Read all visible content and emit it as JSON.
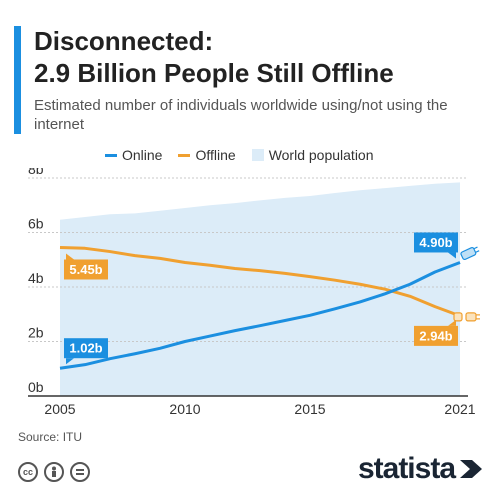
{
  "header": {
    "title_line1": "Disconnected:",
    "title_line2": "2.9 Billion People Still Offline",
    "subtitle": "Estimated number of individuals worldwide using/not using the internet"
  },
  "legend": {
    "online": "Online",
    "offline": "Offline",
    "population": "World population"
  },
  "footer": {
    "source": "Source: ITU",
    "brand": "statista"
  },
  "colors": {
    "online": "#1b8fe0",
    "offline": "#f0a030",
    "population": "#dcecf8",
    "accent": "#1b8fe0"
  },
  "icons": [
    "cc-icon",
    "person-icon",
    "equal-icon",
    "statista-logo-icon",
    "cable-plug-icon",
    "broken-cable-icon"
  ],
  "chart_data": {
    "type": "line",
    "x": [
      2005,
      2006,
      2007,
      2008,
      2009,
      2010,
      2011,
      2012,
      2013,
      2014,
      2015,
      2016,
      2017,
      2018,
      2019,
      2020,
      2021
    ],
    "series": [
      {
        "name": "Online",
        "values": [
          1.02,
          1.15,
          1.37,
          1.55,
          1.75,
          2.0,
          2.2,
          2.4,
          2.58,
          2.77,
          2.96,
          3.2,
          3.45,
          3.75,
          4.1,
          4.55,
          4.9
        ]
      },
      {
        "name": "Offline",
        "values": [
          5.45,
          5.42,
          5.3,
          5.15,
          5.05,
          4.9,
          4.8,
          4.68,
          4.6,
          4.5,
          4.38,
          4.25,
          4.1,
          3.92,
          3.66,
          3.28,
          2.94
        ]
      },
      {
        "name": "World population",
        "values": [
          6.47,
          6.57,
          6.67,
          6.7,
          6.8,
          6.9,
          7.0,
          7.08,
          7.18,
          7.27,
          7.34,
          7.45,
          7.55,
          7.63,
          7.71,
          7.79,
          7.84
        ]
      }
    ],
    "x_ticks": [
      "2005",
      "2010",
      "2015",
      "2021"
    ],
    "y_ticks": [
      "0b",
      "2b",
      "4b",
      "6b",
      "8b"
    ],
    "ylim": [
      0,
      8
    ],
    "annotations": [
      {
        "series": "Online",
        "x": 2005,
        "label": "1.02b"
      },
      {
        "series": "Offline",
        "x": 2005,
        "label": "5.45b"
      },
      {
        "series": "Online",
        "x": 2021,
        "label": "4.90b"
      },
      {
        "series": "Offline",
        "x": 2021,
        "label": "2.94b"
      }
    ],
    "grid": true,
    "legend_position": "top"
  }
}
